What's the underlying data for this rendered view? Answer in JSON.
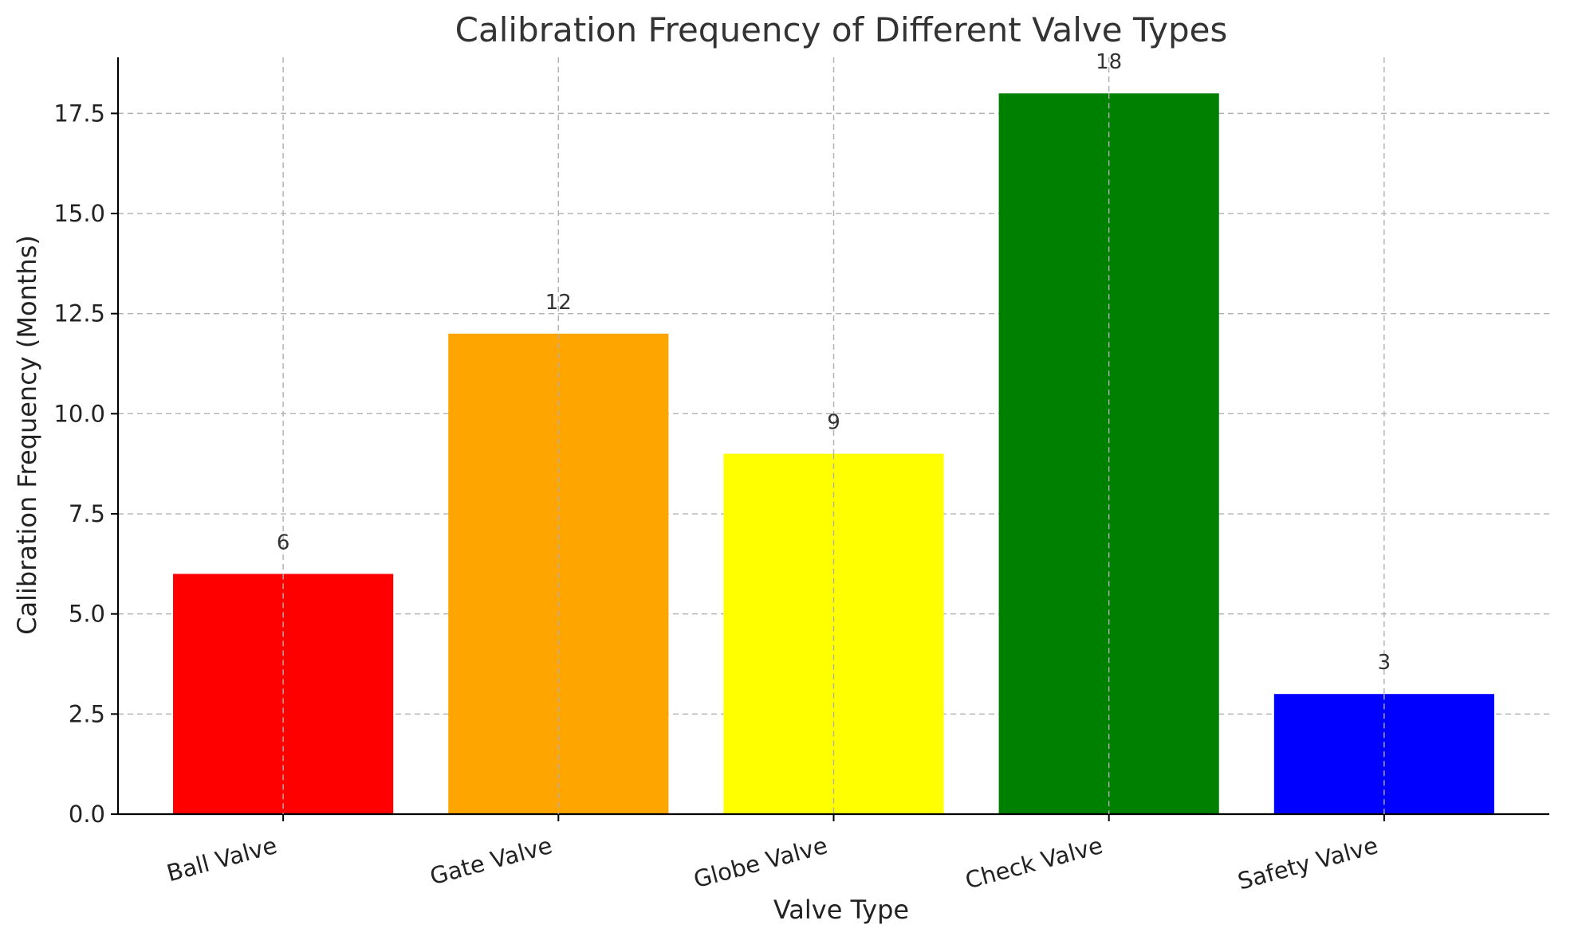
{
  "chart_data": {
    "type": "bar",
    "title": "Calibration Frequency of Different Valve Types",
    "xlabel": "Valve Type",
    "ylabel": "Calibration Frequency (Months)",
    "categories": [
      "Ball Valve",
      "Gate Valve",
      "Globe Valve",
      "Check Valve",
      "Safety Valve"
    ],
    "values": [
      6,
      12,
      9,
      18,
      3
    ],
    "value_labels": [
      "6",
      "12",
      "9",
      "18",
      "3"
    ],
    "colors": [
      "#ff0000",
      "#ffa500",
      "#ffff00",
      "#008000",
      "#0000ff"
    ],
    "ylim": [
      0,
      18.9
    ],
    "yticks": [
      0,
      2.5,
      5,
      7.5,
      10,
      12.5,
      15,
      17.5
    ],
    "ytick_labels": [
      "0.0",
      "2.5",
      "5.0",
      "7.5",
      "10.0",
      "12.5",
      "15.0",
      "17.5"
    ],
    "grid": true,
    "legend": "none"
  }
}
